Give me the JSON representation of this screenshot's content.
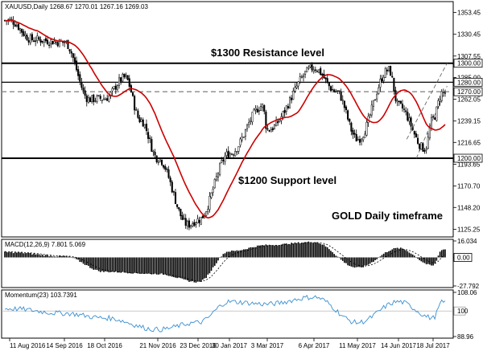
{
  "header": {
    "symbol_line": "XAUUSD,Daily  1268.67 1270.01 1267.16 1269.03",
    "macd_label": "MACD(12,26,9) 7.801 5.069",
    "momentum_label": "Momentum(23) 103.7391"
  },
  "annotations": {
    "resistance": "$1300 Resistance level",
    "support": "$1200 Support level",
    "timeframe": "GOLD Daily timeframe"
  },
  "price_axis": {
    "ticks": [
      "1353.45",
      "1330.45",
      "1307.55",
      "1285.00",
      "1262.05",
      "1239.15",
      "1216.65",
      "1193.65",
      "1170.70",
      "1148.20",
      "1125.25"
    ],
    "tags": [
      {
        "label": "1300.00",
        "style": "dark"
      },
      {
        "label": "1280.00",
        "style": "dark"
      },
      {
        "label": "1270.00",
        "style": "dark"
      },
      {
        "label": "1200.00",
        "style": "dark"
      }
    ]
  },
  "macd_axis": {
    "ticks": [
      "16.034",
      "0.00",
      "-27.792"
    ]
  },
  "momentum_axis": {
    "ticks": [
      "108.06",
      "100",
      "88.96"
    ]
  },
  "date_axis": {
    "labels": [
      "11 Aug 2016",
      "14 Sep 2016",
      "18 Oct 2016",
      "21 Nov 2016",
      "23 Dec 2016",
      "30 Jan 2017",
      "3 Mar 2017",
      "6 Apr 2017",
      "11 May 2017",
      "14 Jun 2017",
      "18 Jul 2017"
    ]
  },
  "chart_data": [
    {
      "type": "candlestick",
      "title": "XAUUSD,Daily",
      "ylim": [
        1118,
        1364
      ],
      "horizontal_levels": [
        1300,
        1280,
        1270,
        1200
      ],
      "moving_average_color": "#cc0000",
      "anchor_closes": [
        {
          "date": "11 Aug 2016",
          "close": 1345
        },
        {
          "date": "25 Aug 2016",
          "close": 1325
        },
        {
          "date": "14 Sep 2016",
          "close": 1322
        },
        {
          "date": "5 Oct 2016",
          "close": 1262
        },
        {
          "date": "18 Oct 2016",
          "close": 1263
        },
        {
          "date": "31 Oct 2016",
          "close": 1285
        },
        {
          "date": "10 Nov 2016",
          "close": 1240
        },
        {
          "date": "21 Nov 2016",
          "close": 1200
        },
        {
          "date": "15 Dec 2016",
          "close": 1130
        },
        {
          "date": "23 Dec 2016",
          "close": 1135
        },
        {
          "date": "30 Jan 2017",
          "close": 1205
        },
        {
          "date": "27 Feb 2017",
          "close": 1255
        },
        {
          "date": "3 Mar 2017",
          "close": 1230
        },
        {
          "date": "6 Apr 2017",
          "close": 1295
        },
        {
          "date": "24 Apr 2017",
          "close": 1270
        },
        {
          "date": "11 May 2017",
          "close": 1220
        },
        {
          "date": "6 Jun 2017",
          "close": 1293
        },
        {
          "date": "14 Jun 2017",
          "close": 1255
        },
        {
          "date": "10 Jul 2017",
          "close": 1210
        },
        {
          "date": "18 Jul 2017",
          "close": 1242
        },
        {
          "date": "27 Jul 2017",
          "close": 1269
        }
      ]
    },
    {
      "type": "bar",
      "title": "MACD(12,26,9)",
      "ylim": [
        -27.792,
        16.034
      ],
      "anchor_values": [
        {
          "date": "11 Aug 2016",
          "value": 5
        },
        {
          "date": "14 Sep 2016",
          "value": 1
        },
        {
          "date": "18 Oct 2016",
          "value": -14
        },
        {
          "date": "21 Nov 2016",
          "value": -16
        },
        {
          "date": "23 Dec 2016",
          "value": -24
        },
        {
          "date": "30 Jan 2017",
          "value": 6
        },
        {
          "date": "3 Mar 2017",
          "value": 12
        },
        {
          "date": "6 Apr 2017",
          "value": 15
        },
        {
          "date": "11 May 2017",
          "value": -10
        },
        {
          "date": "14 Jun 2017",
          "value": 9
        },
        {
          "date": "18 Jul 2017",
          "value": -8
        },
        {
          "date": "27 Jul 2017",
          "value": 7.801
        }
      ],
      "signal_last": 5.069
    },
    {
      "type": "line",
      "title": "Momentum(23)",
      "ylim": [
        88.96,
        108.06
      ],
      "anchor_values": [
        {
          "date": "11 Aug 2016",
          "value": 101
        },
        {
          "date": "14 Sep 2016",
          "value": 99
        },
        {
          "date": "18 Oct 2016",
          "value": 97
        },
        {
          "date": "21 Nov 2016",
          "value": 92
        },
        {
          "date": "23 Dec 2016",
          "value": 95
        },
        {
          "date": "30 Jan 2017",
          "value": 104
        },
        {
          "date": "3 Mar 2017",
          "value": 103
        },
        {
          "date": "6 Apr 2017",
          "value": 106
        },
        {
          "date": "11 May 2017",
          "value": 95
        },
        {
          "date": "14 Jun 2017",
          "value": 104
        },
        {
          "date": "18 Jul 2017",
          "value": 97
        },
        {
          "date": "27 Jul 2017",
          "value": 103.7391
        }
      ]
    }
  ]
}
